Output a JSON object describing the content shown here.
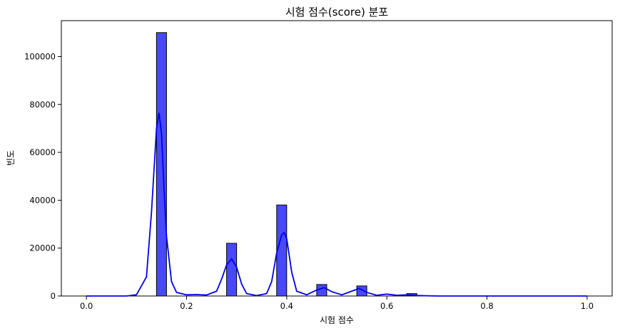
{
  "chart_data": {
    "type": "bar",
    "title": "시험 점수(score) 분포",
    "xlabel": "시험 점수",
    "ylabel": "빈도",
    "xlim": [
      -0.05,
      1.05
    ],
    "ylim": [
      0,
      115000
    ],
    "x_ticks": [
      "0.0",
      "0.2",
      "0.4",
      "0.6",
      "0.8",
      "1.0"
    ],
    "x_tick_values": [
      0.0,
      0.2,
      0.4,
      0.6,
      0.8,
      1.0
    ],
    "y_ticks": [
      "0",
      "20000",
      "40000",
      "60000",
      "80000",
      "100000"
    ],
    "y_tick_values": [
      0,
      20000,
      40000,
      60000,
      80000,
      100000
    ],
    "bin_width": 0.02,
    "bars": [
      {
        "x": 0.14,
        "value": 110000
      },
      {
        "x": 0.28,
        "value": 22000
      },
      {
        "x": 0.38,
        "value": 38000
      },
      {
        "x": 0.46,
        "value": 4800
      },
      {
        "x": 0.54,
        "value": 4200
      },
      {
        "x": 0.64,
        "value": 1000
      }
    ],
    "kde": {
      "x": [
        0.0,
        0.05,
        0.08,
        0.1,
        0.12,
        0.13,
        0.14,
        0.145,
        0.15,
        0.155,
        0.16,
        0.17,
        0.18,
        0.2,
        0.22,
        0.24,
        0.26,
        0.27,
        0.28,
        0.29,
        0.3,
        0.31,
        0.32,
        0.34,
        0.36,
        0.37,
        0.38,
        0.39,
        0.395,
        0.4,
        0.41,
        0.42,
        0.44,
        0.46,
        0.475,
        0.49,
        0.51,
        0.53,
        0.545,
        0.56,
        0.58,
        0.6,
        0.62,
        0.64,
        0.66,
        0.7,
        0.8,
        1.0
      ],
      "values": [
        0,
        0,
        0,
        500,
        8000,
        35000,
        70000,
        76500,
        68000,
        45000,
        25000,
        6000,
        1500,
        500,
        600,
        400,
        2000,
        7000,
        13000,
        15500,
        12000,
        5000,
        1000,
        200,
        1000,
        6000,
        18000,
        25500,
        26500,
        24000,
        10000,
        2000,
        500,
        2500,
        3500,
        1800,
        500,
        2000,
        3200,
        1500,
        300,
        800,
        300,
        500,
        200,
        0,
        0,
        0
      ]
    },
    "bar_color": "#4848FF",
    "kde_color": "#0000EE",
    "grid": false,
    "legend": "none"
  }
}
